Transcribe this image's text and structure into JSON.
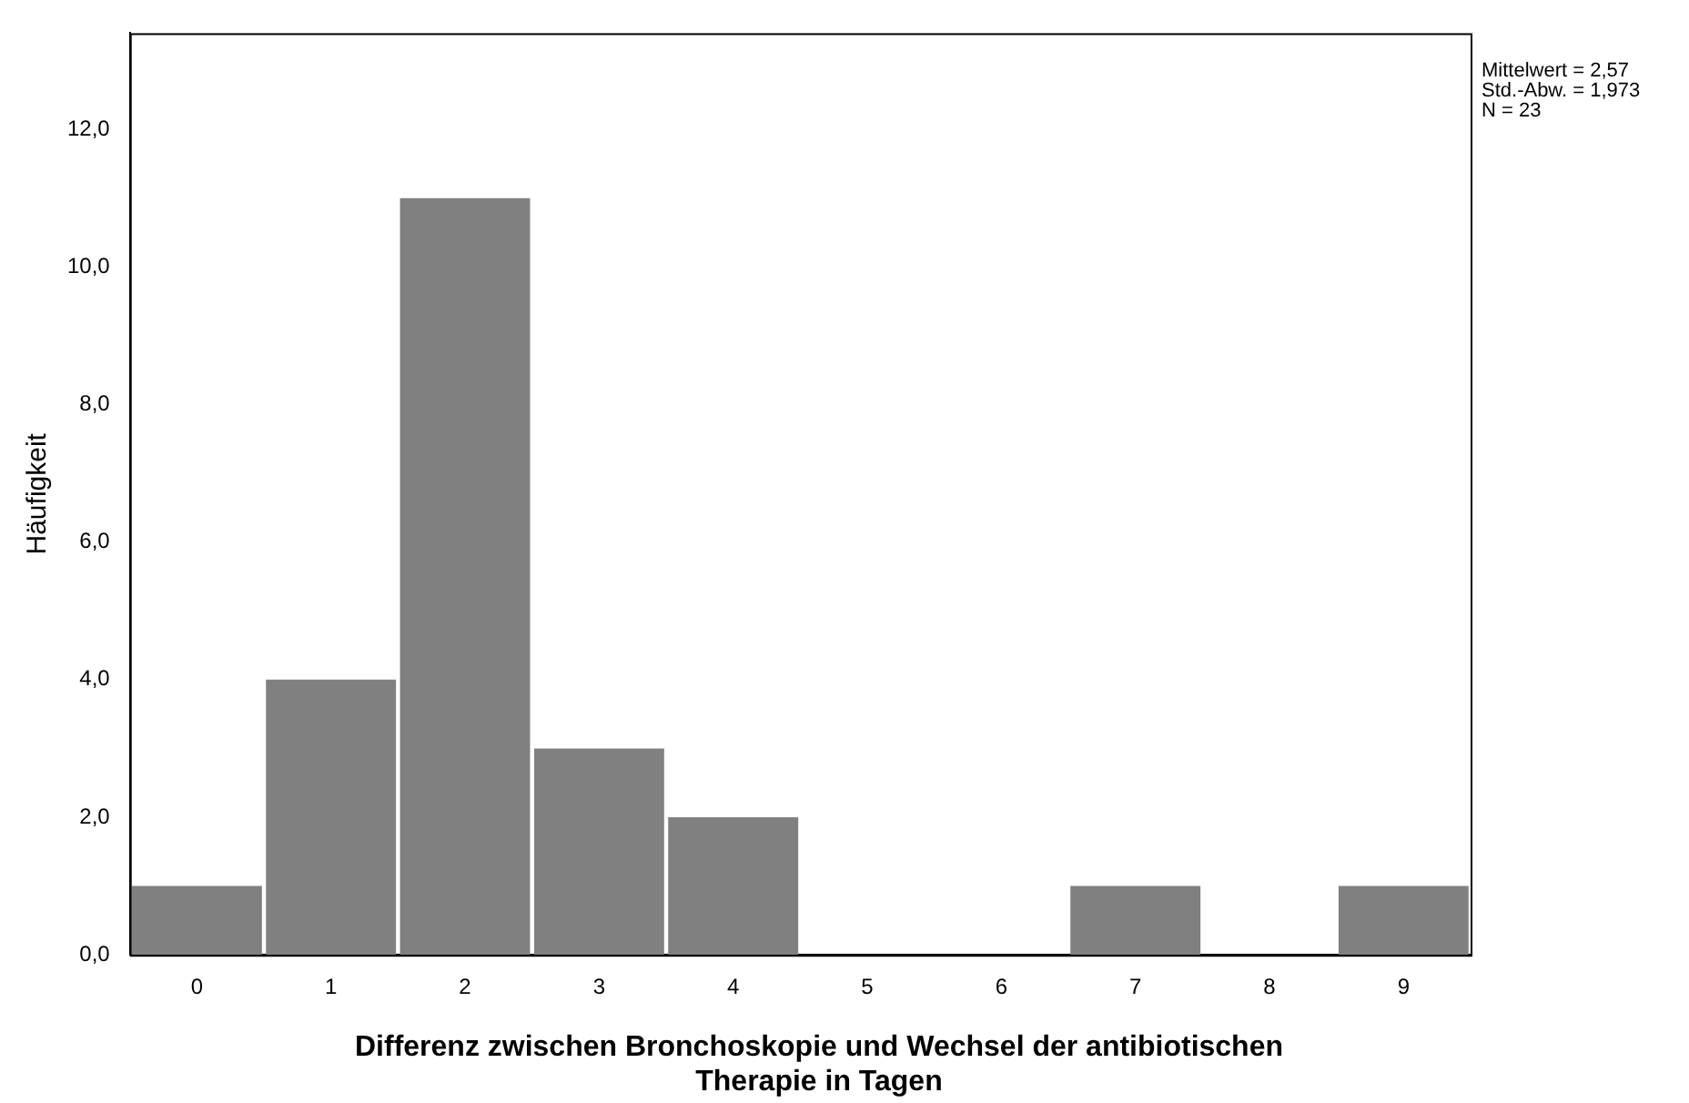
{
  "chart_data": {
    "type": "histogram",
    "xlabel": "Differenz zwischen Bronchoskopie und Wechsel der antibiotischen Therapie in Tagen",
    "ylabel": "Häufigkeit",
    "bins": [
      -0.5,
      0.5,
      1.5,
      2.5,
      3.5,
      4.5,
      5.5,
      6.5,
      7.5,
      8.5,
      9.5
    ],
    "values": [
      1,
      4,
      11,
      3,
      2,
      0,
      0,
      1,
      0,
      1
    ],
    "color": "#808080",
    "xlim": [
      -0.5,
      9.5
    ],
    "xticks": [
      0,
      1,
      2,
      3,
      4,
      5,
      6,
      7,
      8,
      9
    ],
    "ylim": [
      0,
      13.4
    ],
    "yticks": [
      {
        "value": 0,
        "label": "0,0"
      },
      {
        "value": 2,
        "label": "2,0"
      },
      {
        "value": 4,
        "label": "4,0"
      },
      {
        "value": 6,
        "label": "6,0"
      },
      {
        "value": 8,
        "label": "8,0"
      },
      {
        "value": 10,
        "label": "10,0"
      },
      {
        "value": 12,
        "label": "12,0"
      }
    ],
    "grid": false,
    "legend": false,
    "annotations": [
      "Mittelwert = 2,57",
      "Std.-Abw. = 1,973",
      "N = 23"
    ]
  }
}
